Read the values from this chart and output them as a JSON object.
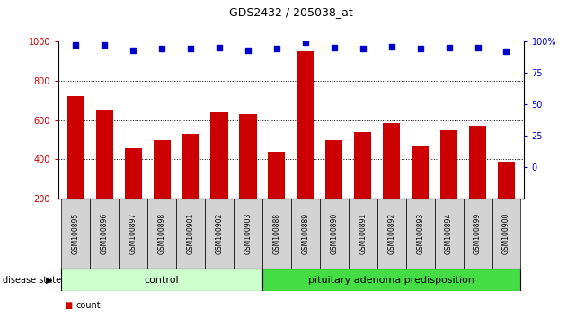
{
  "title": "GDS2432 / 205038_at",
  "samples": [
    "GSM100895",
    "GSM100896",
    "GSM100897",
    "GSM100898",
    "GSM100901",
    "GSM100902",
    "GSM100903",
    "GSM100888",
    "GSM100889",
    "GSM100890",
    "GSM100891",
    "GSM100892",
    "GSM100893",
    "GSM100894",
    "GSM100899",
    "GSM100900"
  ],
  "counts": [
    720,
    650,
    455,
    500,
    530,
    640,
    630,
    440,
    950,
    500,
    540,
    585,
    465,
    550,
    570,
    390
  ],
  "percentiles": [
    97,
    97,
    93,
    94,
    94,
    95,
    93,
    94,
    99,
    95,
    94,
    96,
    94,
    95,
    95,
    92
  ],
  "control_count": 7,
  "disease_count": 9,
  "control_label": "control",
  "disease_label": "pituitary adenoma predisposition",
  "bar_color": "#cc0000",
  "dot_color": "#0000cc",
  "control_bg": "#ccffcc",
  "disease_bg": "#44dd44",
  "ylim_left": [
    200,
    1000
  ],
  "ylim_right": [
    -25,
    100
  ],
  "yticks_left": [
    200,
    400,
    600,
    800,
    1000
  ],
  "yticks_right": [
    0,
    25,
    50,
    75,
    100
  ],
  "grid_values": [
    400,
    600,
    800
  ],
  "label_bg": "#d3d3d3",
  "bar_width": 0.6
}
